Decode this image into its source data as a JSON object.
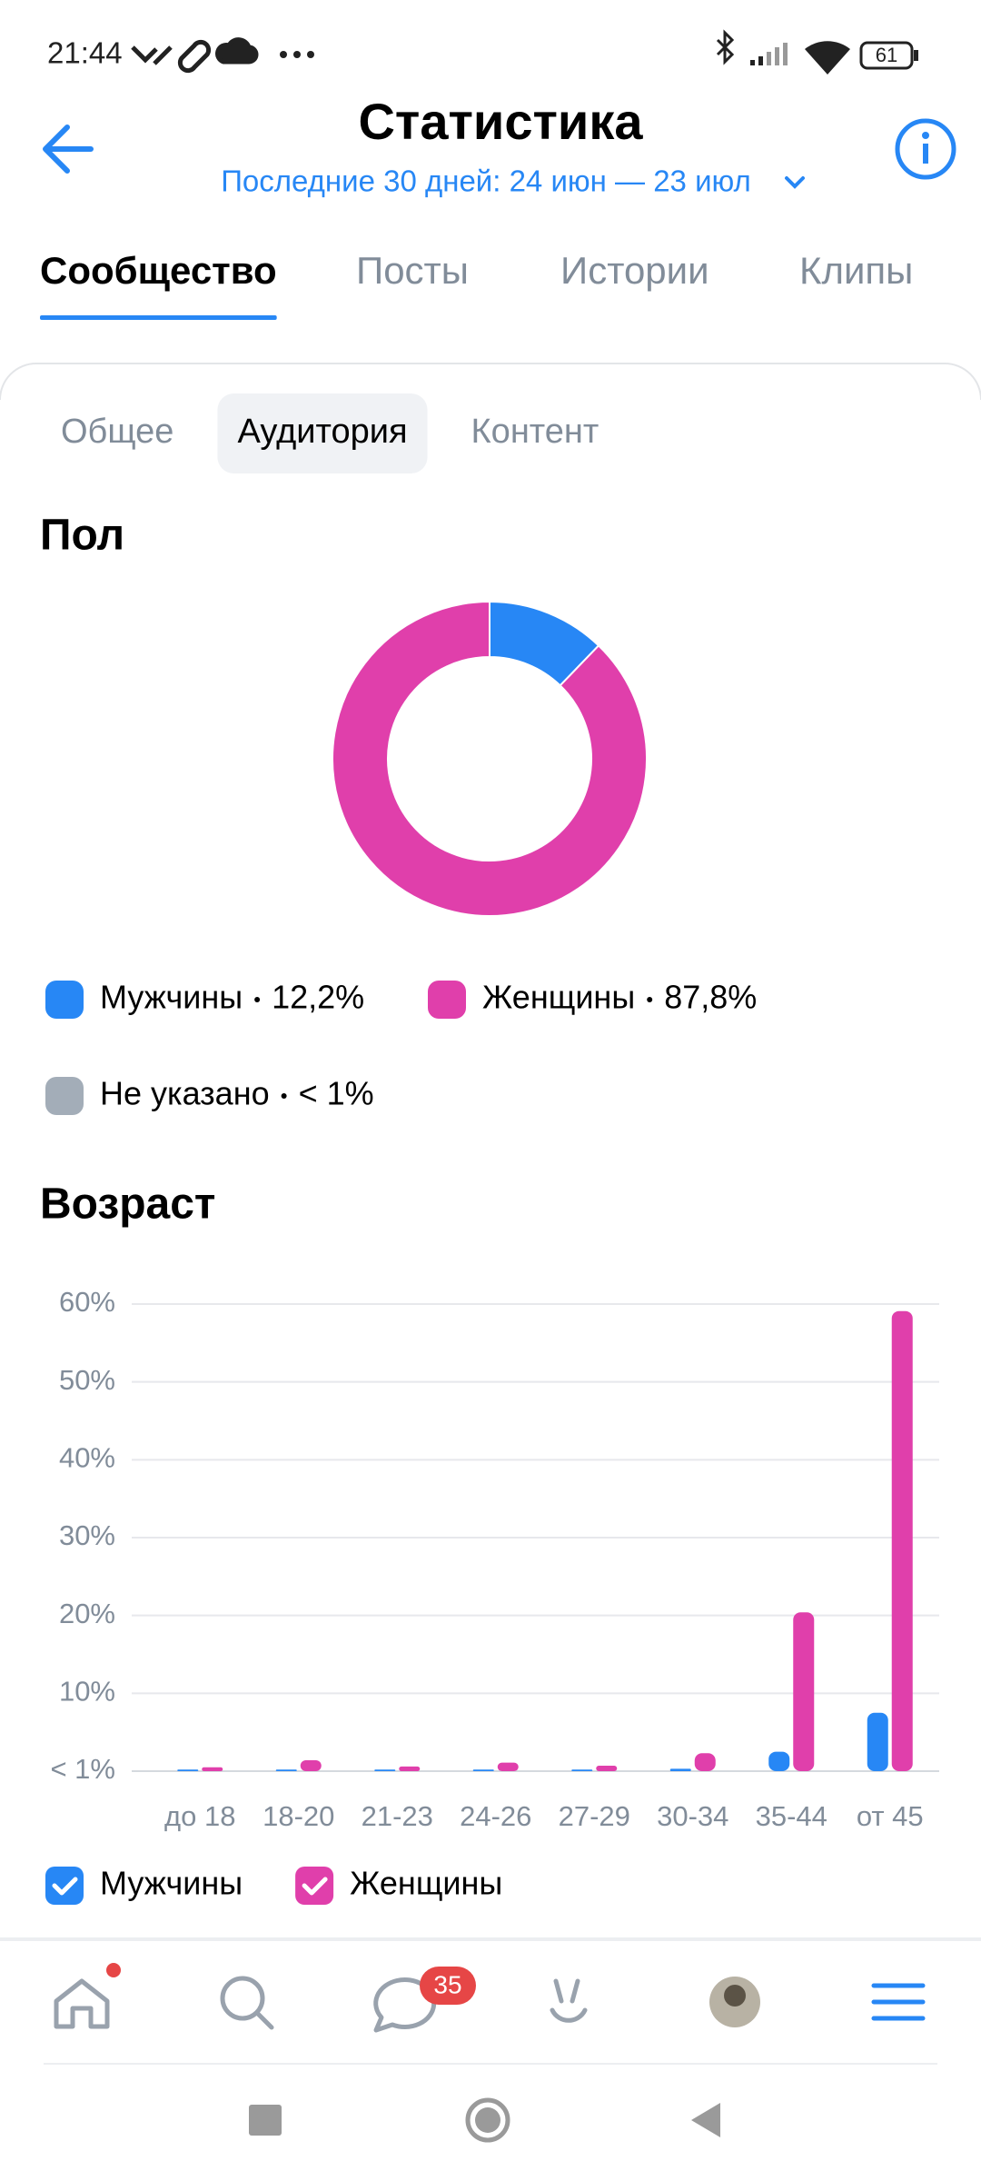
{
  "status_bar": {
    "time": "21:44",
    "battery": "61"
  },
  "header": {
    "title": "Статистика",
    "period": "Последние 30 дней: 24 июн — 23 июл"
  },
  "tabs": {
    "items": [
      "Сообщество",
      "Посты",
      "Истории",
      "Клипы"
    ],
    "active": 0
  },
  "subtabs": {
    "items": [
      "Общее",
      "Аудитория",
      "Контент"
    ],
    "active": 1
  },
  "chart_data": [
    {
      "type": "pie",
      "donut": true,
      "title": "Пол",
      "categories": [
        "Мужчины",
        "Женщины",
        "Не указано"
      ],
      "values": [
        12.2,
        87.8,
        0
      ],
      "value_labels": [
        "12,2%",
        "87,8%",
        "< 1%"
      ],
      "colors": [
        "#2787f5",
        "#e03fab",
        "#a3adb8"
      ]
    },
    {
      "type": "bar",
      "title": "Возраст",
      "categories": [
        "до 18",
        "18-20",
        "21-23",
        "24-26",
        "27-29",
        "30-34",
        "35-44",
        "от 45"
      ],
      "series": [
        {
          "name": "Мужчины",
          "color": "#2787f5",
          "values": [
            0.2,
            0.2,
            0.2,
            0.2,
            0.2,
            0.3,
            2.5,
            7.5
          ]
        },
        {
          "name": "Женщины",
          "color": "#e03fab",
          "values": [
            0.5,
            1.4,
            0.6,
            1.1,
            0.7,
            2.3,
            20.4,
            59.1
          ]
        }
      ],
      "ylim": [
        0,
        60
      ],
      "yticks": [
        {
          "value": 0,
          "label": "< 1%"
        },
        {
          "value": 10,
          "label": "10%"
        },
        {
          "value": 20,
          "label": "20%"
        },
        {
          "value": 30,
          "label": "30%"
        },
        {
          "value": 40,
          "label": "40%"
        },
        {
          "value": 50,
          "label": "50%"
        },
        {
          "value": 60,
          "label": "60%"
        }
      ],
      "grid": true
    }
  ],
  "nav": {
    "badge": "35"
  }
}
